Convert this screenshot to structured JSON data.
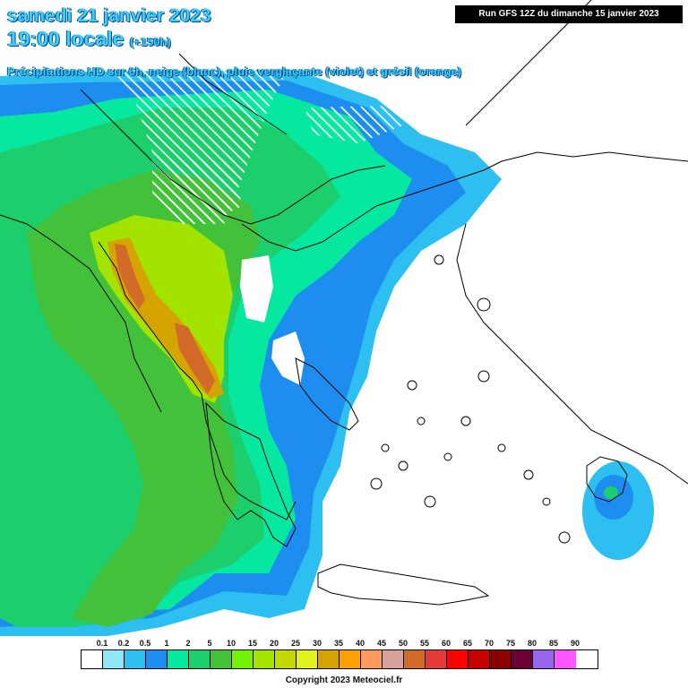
{
  "header": {
    "date": "samedi 21 janvier 2023",
    "time": "19:00 locale",
    "step": "(+150h)",
    "description": "Précipitations HD sur 6h, neige (blanc), pluie verglaçante (violet) et grésil (orange)"
  },
  "run_info": "Run GFS 12Z du dimanche 15 janvier 2023",
  "legend": {
    "labels": [
      "0.1",
      "0.2",
      "0.5",
      "1",
      "2",
      "5",
      "10",
      "15",
      "20",
      "25",
      "30",
      "35",
      "40",
      "45",
      "50",
      "55",
      "60",
      "65",
      "70",
      "75",
      "80",
      "85",
      "90"
    ],
    "colors": [
      "#ffffff",
      "#8ee7f5",
      "#2cbff0",
      "#1d8ef0",
      "#06e8a0",
      "#1ccf6c",
      "#44c13a",
      "#72f100",
      "#a2e400",
      "#c2d800",
      "#e0f21c",
      "#d6a400",
      "#ff9f00",
      "#ff9a5e",
      "#d6a29a",
      "#d26a2a",
      "#e43b3a",
      "#ff0000",
      "#c70000",
      "#8a0000",
      "#6b0037",
      "#9966ee",
      "#ff55ff"
    ]
  },
  "map_colors": {
    "sea": "#ffffff",
    "coastline": "#000000",
    "light_blue": "#2cbff0",
    "blue": "#1d8ef0",
    "teal": "#06e8a0",
    "green": "#1ccf6c",
    "mid_green": "#44c13a",
    "yellow_green": "#a2e400",
    "olive": "#c2d800",
    "orange": "#d6a400",
    "red_orange": "#d26a2a",
    "snow_hatch": "#ffffff"
  },
  "copyright": "Copyright 2023 Meteociel.fr"
}
